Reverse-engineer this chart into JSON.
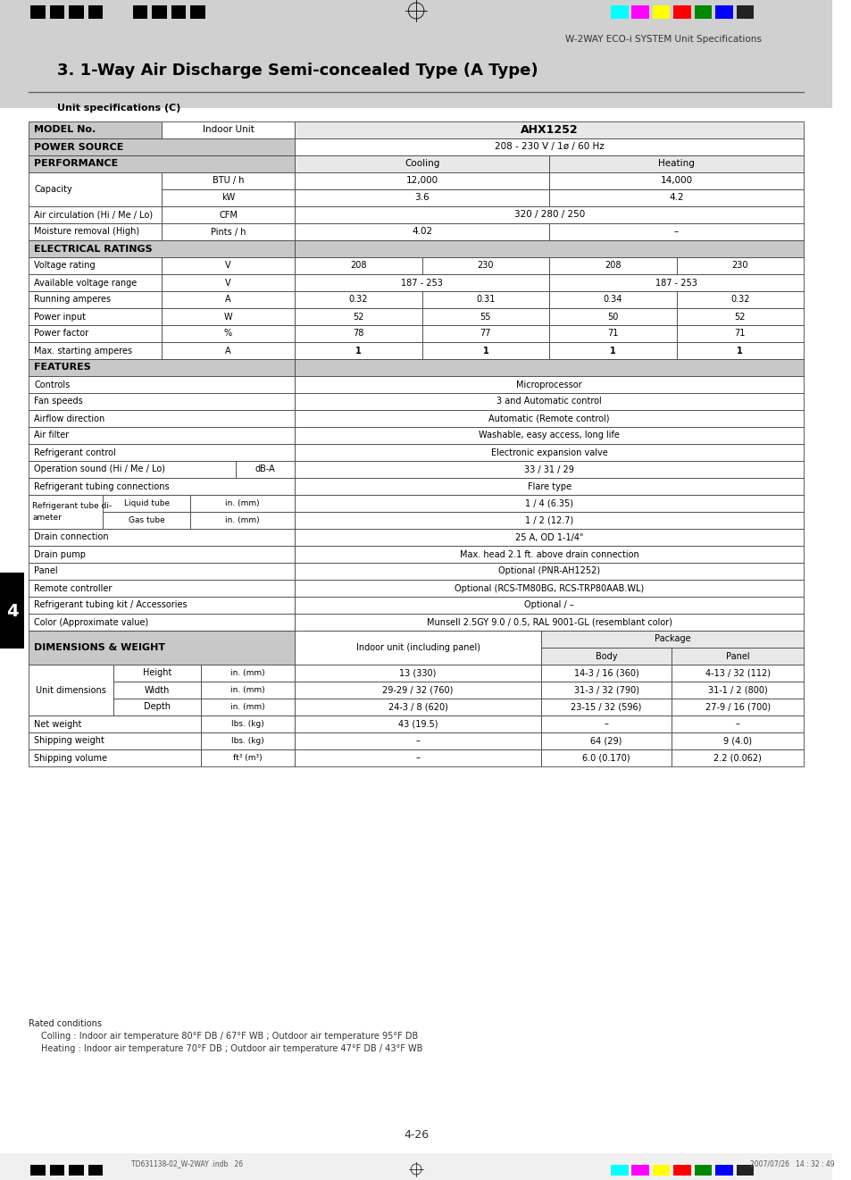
{
  "title": "3. 1-Way Air Discharge Semi-concealed Type (A Type)",
  "header_right": "W-2WAY ECO-i SYSTEM Unit Specifications",
  "subtitle": "Unit specifications (C)",
  "page_label": "4-26",
  "footer_note1": "Rated conditions",
  "footer_note2": "Colling : Indoor air temperature 80°F DB / 67°F WB ; Outdoor air temperature 95°F DB",
  "footer_note3": "Heating : Indoor air temperature 70°F DB ; Outdoor air temperature 47°F DB / 43°F WB",
  "chapter_label": "4",
  "bg_color": "#ffffff",
  "page_top_bg": "#d4d4d4",
  "header_bg": "#e0e0e0",
  "section_bg": "#c8c8c8",
  "table_data": {
    "model": "AHX1252",
    "indoor_unit": "Indoor Unit",
    "power_source": "208 - 230 V / 1ø / 60 Hz",
    "performance_cooling": "Cooling",
    "performance_heating": "Heating",
    "capacity_btu_cooling": "12,000",
    "capacity_btu_heating": "14,000",
    "capacity_kw_cooling": "3.6",
    "capacity_kw_heating": "4.2",
    "air_circulation": "320 / 280 / 250",
    "moisture_removal_cooling": "4.02",
    "moisture_removal_heating": "–",
    "voltage_rating": [
      "208",
      "230",
      "208",
      "230"
    ],
    "available_voltage_range": [
      "187 - 253",
      "187 - 253"
    ],
    "running_amperes": [
      "0.32",
      "0.31",
      "0.34",
      "0.32"
    ],
    "power_input": [
      "52",
      "55",
      "50",
      "52"
    ],
    "power_factor": [
      "78",
      "77",
      "71",
      "71"
    ],
    "max_starting_amperes": [
      "1",
      "1",
      "1",
      "1"
    ],
    "controls": "Microprocessor",
    "fan_speeds": "3 and Automatic control",
    "airflow_direction": "Automatic (Remote control)",
    "air_filter": "Washable, easy access, long life",
    "refrigerant_control": "Electronic expansion valve",
    "operation_sound": "33 / 31 / 29",
    "refrigerant_tubing_connections": "Flare type",
    "liquid_tube": "1 / 4 (6.35)",
    "gas_tube": "1 / 2 (12.7)",
    "drain_connection": "25 A, OD 1-1/4\"",
    "drain_pump": "Max. head 2.1 ft. above drain connection",
    "panel": "Optional (PNR-AH1252)",
    "remote_controller": "Optional (RCS-TM80BG, RCS-TRP80AAB.WL)",
    "refrigerant_tubing_kit": "Optional / –",
    "color": "Munsell 2.5GY 9.0 / 0.5, RAL 9001-GL (resemblant color)",
    "dim_height_indoor": "13 (330)",
    "dim_height_body": "14-3 / 16 (360)",
    "dim_height_panel": "4-13 / 32 (112)",
    "dim_width_indoor": "29-29 / 32 (760)",
    "dim_width_body": "31-3 / 32 (790)",
    "dim_width_panel": "31-1 / 2 (800)",
    "dim_depth_indoor": "24-3 / 8 (620)",
    "dim_depth_body": "23-15 / 32 (596)",
    "dim_depth_panel": "27-9 / 16 (700)",
    "net_weight_indoor": "43 (19.5)",
    "net_weight_body": "–",
    "net_weight_panel": "–",
    "shipping_weight_indoor": "–",
    "shipping_weight_body": "64 (29)",
    "shipping_weight_panel": "9 (4.0)",
    "shipping_volume_indoor": "–",
    "shipping_volume_body": "6.0 (0.170)",
    "shipping_volume_panel": "2.2 (0.062)"
  }
}
